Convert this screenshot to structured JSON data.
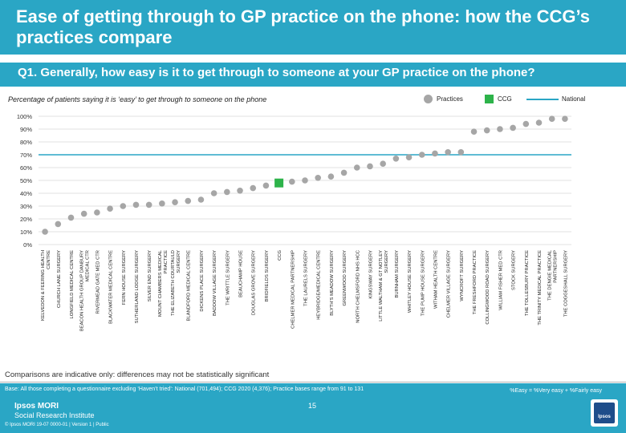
{
  "header": {
    "title": "Ease of getting through to GP practice on the phone: how the CCG’s practices compare",
    "question": "Q1. Generally, how easy is it to get through to someone at your GP practice on the phone?"
  },
  "chart_data": {
    "type": "scatter",
    "title": "Percentage of patients saying it is ‘easy’ to get through to someone on the phone",
    "ylim": [
      0,
      100
    ],
    "yticks": [
      "0%",
      "10%",
      "20%",
      "30%",
      "40%",
      "50%",
      "60%",
      "70%",
      "80%",
      "90%",
      "100%"
    ],
    "legend": [
      {
        "label": "Practices",
        "color": "#a6a6a6"
      },
      {
        "label": "CCG",
        "color": "#2db34a"
      },
      {
        "label": "National",
        "color": "#2aa6c5"
      }
    ],
    "national_value": 70,
    "points": [
      {
        "label": "KELVEDON & FEERING HEALTH CENTRE",
        "value": 10,
        "type": "practice"
      },
      {
        "label": "CHURCH LANE SURGERY",
        "value": 16,
        "type": "practice"
      },
      {
        "label": "LONGFIELD MEDICAL CENTRE",
        "value": 21,
        "type": "practice"
      },
      {
        "label": "BEACON HEALTH GROUP DANBURY MEDICAL CTR",
        "value": 24,
        "type": "practice"
      },
      {
        "label": "RIVERMEAD GATE MED CTR",
        "value": 25,
        "type": "practice"
      },
      {
        "label": "BLACKWATER MEDICAL CENTRE",
        "value": 28,
        "type": "practice"
      },
      {
        "label": "FERN HOUSE SURGERY",
        "value": 30,
        "type": "practice"
      },
      {
        "label": "SUTHERLAND LODGE SURGERY",
        "value": 31,
        "type": "practice"
      },
      {
        "label": "SILVER END SURGERY",
        "value": 31,
        "type": "practice"
      },
      {
        "label": "MOUNT CHAMBERS MEDICAL PRACTICE",
        "value": 32,
        "type": "practice"
      },
      {
        "label": "THE ELIZABETH COURTAULD SURGERY",
        "value": 33,
        "type": "practice"
      },
      {
        "label": "BLANDFORD MEDICAL CENTRE",
        "value": 34,
        "type": "practice"
      },
      {
        "label": "DICKENS PLACE SURGERY",
        "value": 35,
        "type": "practice"
      },
      {
        "label": "BADDOW VILLAGE SURGERY",
        "value": 40,
        "type": "practice"
      },
      {
        "label": "THE WRITTLE SURGERY",
        "value": 41,
        "type": "practice"
      },
      {
        "label": "BEAUCHAMP HOUSE",
        "value": 42,
        "type": "practice"
      },
      {
        "label": "DOUGLAS GROVE SURGERY",
        "value": 44,
        "type": "practice"
      },
      {
        "label": "BRIDFIELDS SURGERY",
        "value": 46,
        "type": "practice"
      },
      {
        "label": "CCG",
        "value": 48,
        "type": "ccg"
      },
      {
        "label": "CHELMER MEDICAL PARTNERSHIP",
        "value": 49,
        "type": "practice"
      },
      {
        "label": "THE LAURELS SURGERY",
        "value": 50,
        "type": "practice"
      },
      {
        "label": "HEYBRIDGE/MEDICAL CENTRE",
        "value": 52,
        "type": "practice"
      },
      {
        "label": "BLYTH'S MEADOW SURGERY",
        "value": 53,
        "type": "practice"
      },
      {
        "label": "GREENWOOD SURGERY",
        "value": 56,
        "type": "practice"
      },
      {
        "label": "NORTH CHELMSFORD NHS HCC",
        "value": 60,
        "type": "practice"
      },
      {
        "label": "KINGSWAY SURGERY",
        "value": 61,
        "type": "practice"
      },
      {
        "label": "LITTLE WALTHAM & GT NOTLEY SURGERY",
        "value": 63,
        "type": "practice"
      },
      {
        "label": "BURNHAM SURGERY",
        "value": 67,
        "type": "practice"
      },
      {
        "label": "WHITLEY HOUSE SURGERY",
        "value": 68,
        "type": "practice"
      },
      {
        "label": "THE PUMP HOUSE SURGERY",
        "value": 70,
        "type": "practice"
      },
      {
        "label": "WITHAM HEALTH CENTRE",
        "value": 71,
        "type": "practice"
      },
      {
        "label": "CHELMER VILLAGE SURGERY",
        "value": 72,
        "type": "practice"
      },
      {
        "label": "WYNCROFT SURGERY",
        "value": 72,
        "type": "practice"
      },
      {
        "label": "THE FRESHFORD PRACTICE",
        "value": 88,
        "type": "practice"
      },
      {
        "label": "COLLINGWOOD ROAD SURGERY",
        "value": 89,
        "type": "practice"
      },
      {
        "label": "WILLIAM FISHER MED CTR",
        "value": 90,
        "type": "practice"
      },
      {
        "label": "STOCK SURGERY",
        "value": 91,
        "type": "practice"
      },
      {
        "label": "THE TOLLESBURY PRACTICE",
        "value": 94,
        "type": "practice"
      },
      {
        "label": "THE TRINITY MEDICAL PRACTICE",
        "value": 95,
        "type": "practice"
      },
      {
        "label": "THE DENGIE MEDICAL PARTNERSHIP",
        "value": 98,
        "type": "practice"
      },
      {
        "label": "THE COGGESHALL SURGERY",
        "value": 98,
        "type": "practice"
      }
    ]
  },
  "notes": {
    "comparison": "Comparisons are indicative only: differences may not be statistically significant",
    "base": "Base: All those completing a questionnaire excluding ‘Haven’t tried’: National (701,494); CCG 2020 (4,376); Practice bases range from 91 to 131",
    "definition": "%Easy = %Very easy + %Fairly easy"
  },
  "footer": {
    "brand": "Ipsos MORI",
    "brand_sub": "Social Research Institute",
    "copyright": "© Ipsos MORI    19-07 0000-01 | Version 1 | Public",
    "page": "15",
    "logo": "Ipsos"
  },
  "colors": {
    "accent": "#2aa6c5",
    "practice": "#a6a6a6",
    "ccg": "#2db34a",
    "national": "#2aa6c5"
  }
}
